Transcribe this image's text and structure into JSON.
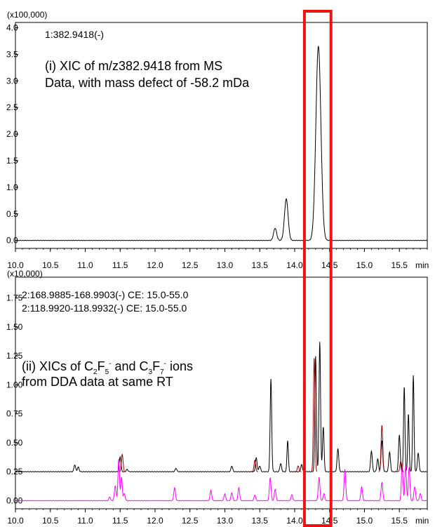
{
  "chart_data": [
    {
      "type": "line",
      "multiplier": "(x100,000)",
      "xlim": [
        10.0,
        15.9
      ],
      "ylim": [
        -0.15,
        4.1
      ],
      "y_ticks": [
        "0.0",
        "0.5",
        "1.0",
        "1.5",
        "2.0",
        "2.5",
        "3.0",
        "3.5",
        "4.0"
      ],
      "x_ticks": [
        "10.0",
        "10.5",
        "11.0",
        "11.5",
        "12.0",
        "12.5",
        "13.0",
        "13.5",
        "14.0",
        "14.5",
        "15.0",
        "15.5"
      ],
      "x_unit": "min",
      "grid": false,
      "trace_label": "1:382.9418(-)",
      "annotation_lines": [
        "(i) XIC of m/z382.9418 from MS",
        "Data, with mass defect of -58.2 mDa"
      ],
      "series": [
        {
          "label": "1:382.9418(-)",
          "color": "#000000",
          "baseline": 0.0,
          "peaks": [
            [
              13.72,
              0.23,
              0.022
            ],
            [
              13.88,
              0.78,
              0.026
            ],
            [
              14.34,
              3.66,
              0.036
            ]
          ]
        }
      ]
    },
    {
      "type": "line",
      "multiplier": "(x10,000)",
      "xlim": [
        10.0,
        15.9
      ],
      "ylim": [
        -0.07,
        1.93
      ],
      "y_ticks": [
        "0.00",
        "0.25",
        "0.50",
        "0.75",
        "1.00",
        "1.25",
        "1.50",
        "1.75"
      ],
      "x_ticks": [
        "10.0",
        "10.5",
        "11.0",
        "11.5",
        "12.0",
        "12.5",
        "13.0",
        "13.5",
        "14.0",
        "14.5",
        "15.0",
        "15.5"
      ],
      "x_unit": "min",
      "grid": false,
      "annotation": {
        "line1_parts": [
          "(ii) XICs of C",
          "2",
          "F",
          "5",
          "-",
          " and C",
          "3",
          "F",
          "7",
          "-",
          " ions"
        ],
        "line2": "from DDA data at same RT"
      },
      "series": [
        {
          "label": "2:168.9885-168.9903(-) CE: 15.0-55.0",
          "color": "#000000",
          "baseline": 0.25,
          "peaks": [
            [
              10.85,
              0.06,
              0.012
            ],
            [
              10.9,
              0.04,
              0.012
            ],
            [
              11.5,
              0.13,
              0.012
            ],
            [
              11.6,
              0.02,
              0.012
            ],
            [
              12.3,
              0.03,
              0.012
            ],
            [
              13.1,
              0.05,
              0.012
            ],
            [
              13.45,
              0.12,
              0.012
            ],
            [
              13.5,
              0.05,
              0.012
            ],
            [
              13.66,
              0.8,
              0.011
            ],
            [
              13.8,
              0.07,
              0.012
            ],
            [
              13.9,
              0.27,
              0.01
            ],
            [
              14.1,
              0.06,
              0.012
            ],
            [
              14.3,
              1.0,
              0.011
            ],
            [
              14.36,
              1.12,
              0.011
            ],
            [
              14.41,
              0.39,
              0.011
            ],
            [
              14.62,
              0.2,
              0.012
            ],
            [
              15.1,
              0.18,
              0.012
            ],
            [
              15.19,
              0.11,
              0.012
            ],
            [
              15.25,
              0.27,
              0.012
            ],
            [
              15.36,
              0.17,
              0.012
            ],
            [
              15.5,
              0.32,
              0.012
            ],
            [
              15.57,
              0.74,
              0.01
            ],
            [
              15.63,
              0.5,
              0.01
            ],
            [
              15.7,
              0.83,
              0.01
            ],
            [
              15.77,
              0.16,
              0.012
            ]
          ]
        },
        {
          "label": "2:118.9920-118.9932(-) CE: 15.0-55.0",
          "color": "#ff00ff",
          "baseline": 0.0,
          "peaks": [
            [
              11.35,
              0.03,
              0.012
            ],
            [
              11.43,
              0.13,
              0.012
            ],
            [
              11.48,
              0.36,
              0.011
            ],
            [
              11.52,
              0.2,
              0.011
            ],
            [
              11.56,
              0.06,
              0.012
            ],
            [
              12.28,
              0.11,
              0.012
            ],
            [
              12.8,
              0.09,
              0.012
            ],
            [
              13.0,
              0.06,
              0.012
            ],
            [
              13.1,
              0.07,
              0.012
            ],
            [
              13.2,
              0.11,
              0.012
            ],
            [
              13.43,
              0.05,
              0.012
            ],
            [
              13.65,
              0.2,
              0.012
            ],
            [
              13.72,
              0.1,
              0.012
            ],
            [
              13.96,
              0.05,
              0.012
            ],
            [
              14.35,
              0.2,
              0.012
            ],
            [
              14.42,
              0.06,
              0.012
            ],
            [
              14.72,
              0.27,
              0.012
            ],
            [
              14.96,
              0.12,
              0.012
            ],
            [
              15.25,
              0.16,
              0.012
            ],
            [
              15.54,
              0.32,
              0.011
            ],
            [
              15.59,
              0.3,
              0.011
            ],
            [
              15.64,
              0.29,
              0.011
            ],
            [
              15.72,
              0.12,
              0.012
            ],
            [
              15.8,
              0.06,
              0.012
            ]
          ]
        }
      ],
      "overlay_peaks": [
        {
          "color": "#990000",
          "baseline": 0.25,
          "peaks": [
            [
              11.53,
              0.15,
              0.012
            ],
            [
              13.43,
              0.1,
              0.012
            ],
            [
              14.05,
              0.05,
              0.012
            ],
            [
              14.28,
              0.98,
              0.011
            ],
            [
              15.25,
              0.4,
              0.012
            ],
            [
              15.52,
              0.09,
              0.012
            ]
          ]
        }
      ],
      "legend_placement": "top-left"
    }
  ],
  "highlight": {
    "color": "#ee1111",
    "x_range": [
      14.14,
      14.52
    ]
  }
}
